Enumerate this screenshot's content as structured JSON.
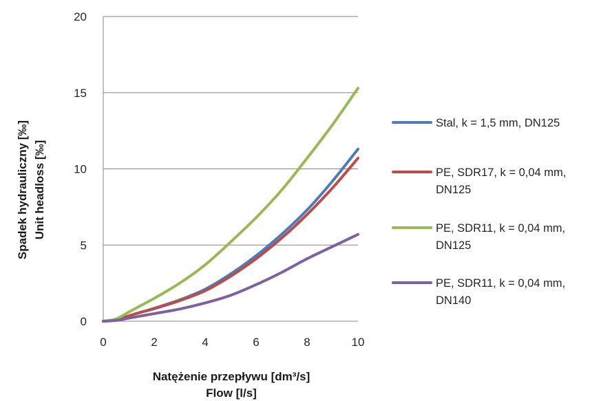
{
  "chart_data": {
    "type": "line",
    "title": "",
    "xlabel": [
      "Natężenie przepływu [dm³/s]",
      "Flow [l/s]"
    ],
    "ylabel": [
      "Spadek hydrauliczny [‰]",
      "Unit headloss [‰]"
    ],
    "xlim": [
      0,
      10
    ],
    "ylim": [
      0,
      20
    ],
    "x_ticks": [
      "0",
      "2",
      "4",
      "6",
      "8",
      "10"
    ],
    "y_ticks": [
      "0",
      "5",
      "10",
      "15",
      "20"
    ],
    "grid": "horizontal",
    "legend_position": "right",
    "series": [
      {
        "name": "Stal, k = 1,5 mm, DN125",
        "legend_lines": [
          "Stal, k = 1,5 mm, DN125"
        ],
        "color": "#4a7ebb",
        "x": [
          0,
          0.5,
          1,
          1.5,
          2,
          3,
          4,
          5,
          6,
          7,
          8,
          9,
          10
        ],
        "y": [
          0,
          0.1,
          0.35,
          0.6,
          0.85,
          1.4,
          2.1,
          3.1,
          4.3,
          5.7,
          7.3,
          9.2,
          11.3
        ]
      },
      {
        "name": "PE, SDR17, k = 0,04 mm, DN125",
        "legend_lines": [
          "PE, SDR17, k = 0,04 mm,",
          "DN125"
        ],
        "color": "#be4b48",
        "x": [
          0,
          0.5,
          1,
          1.5,
          2,
          3,
          4,
          5,
          6,
          7,
          8,
          9,
          10
        ],
        "y": [
          0,
          0.1,
          0.35,
          0.6,
          0.82,
          1.35,
          2.0,
          2.95,
          4.1,
          5.45,
          7.0,
          8.75,
          10.7
        ]
      },
      {
        "name": "PE, SDR11, k = 0,04 mm, DN125",
        "legend_lines": [
          "PE, SDR11, k = 0,04 mm,",
          "DN125"
        ],
        "color": "#98b954",
        "x": [
          0,
          0.5,
          1,
          1.5,
          2,
          3,
          4,
          5,
          6,
          7,
          8,
          9,
          10
        ],
        "y": [
          0,
          0.15,
          0.6,
          1.05,
          1.5,
          2.5,
          3.7,
          5.2,
          6.8,
          8.6,
          10.7,
          12.9,
          15.3
        ]
      },
      {
        "name": "PE, SDR11, k = 0,04 mm, DN140",
        "legend_lines": [
          "PE, SDR11, k = 0,04 mm,",
          "DN140"
        ],
        "color": "#7d60a0",
        "x": [
          0,
          0.5,
          1,
          1.5,
          2,
          3,
          4,
          5,
          6,
          7,
          8,
          9,
          10
        ],
        "y": [
          0,
          0.05,
          0.2,
          0.35,
          0.5,
          0.8,
          1.2,
          1.7,
          2.4,
          3.2,
          4.1,
          4.9,
          5.7
        ]
      }
    ]
  }
}
